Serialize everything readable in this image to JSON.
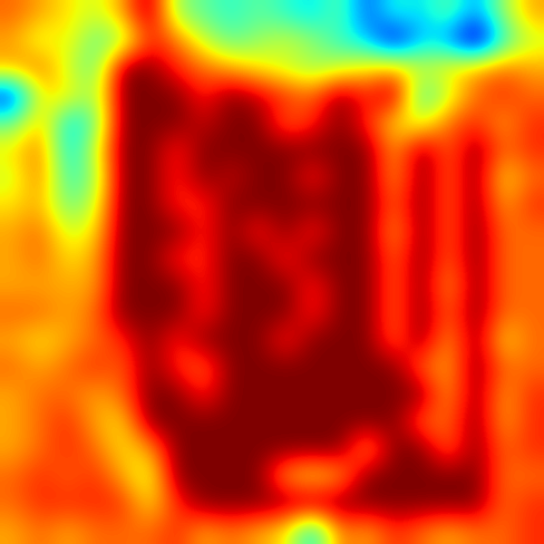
{
  "chart_data": {
    "type": "heatmap",
    "color": "jet",
    "tick_labels": false,
    "cells": [
      [
        0.85,
        0.8,
        0.75,
        0.7,
        0.8,
        1.0,
        0.65,
        0.6,
        0.55,
        0.6,
        0.55,
        0.5,
        0.6,
        0.4,
        0.55,
        0.5,
        0.6,
        0.45,
        0.65,
        0.8
      ],
      [
        0.8,
        0.7,
        0.75,
        0.6,
        0.65,
        0.9,
        0.85,
        0.7,
        0.6,
        0.65,
        0.7,
        0.65,
        0.55,
        0.5,
        0.3,
        0.5,
        0.45,
        0.25,
        0.55,
        0.7
      ],
      [
        0.8,
        0.85,
        0.7,
        0.6,
        1,
        1,
        0.9,
        0.85,
        0.8,
        0.75,
        0.7,
        0.65,
        0.7,
        0.75,
        0.8,
        0.7,
        0.75,
        0.8,
        0.85,
        0.8
      ],
      [
        0.35,
        0.75,
        0.75,
        0.65,
        1,
        1,
        1,
        0.9,
        1,
        0.95,
        0.9,
        0.85,
        1,
        0.9,
        1,
        0.55,
        0.7,
        0.85,
        0.9,
        0.85
      ],
      [
        0.6,
        0.8,
        0.5,
        0.6,
        1,
        1,
        1,
        0.95,
        1,
        1,
        0.85,
        0.9,
        1,
        0.9,
        0.75,
        0.7,
        0.85,
        0.9,
        0.8,
        0.9
      ],
      [
        0.75,
        0.85,
        0.5,
        0.7,
        1,
        1,
        0.9,
        1,
        1,
        1,
        1,
        1,
        1,
        1,
        0.8,
        1,
        0.85,
        1,
        0.85,
        0.9
      ],
      [
        0.7,
        0.85,
        0.55,
        0.65,
        1,
        1,
        0.9,
        1,
        0.95,
        1,
        1,
        0.9,
        1,
        1,
        0.8,
        1,
        0.85,
        1,
        0.75,
        0.85
      ],
      [
        0.75,
        0.8,
        0.6,
        0.7,
        1,
        1,
        0.9,
        0.9,
        1,
        1,
        1,
        1,
        1,
        1,
        0.85,
        1,
        0.85,
        1,
        0.8,
        0.9
      ],
      [
        0.8,
        0.85,
        0.7,
        0.75,
        1,
        1,
        1,
        0.9,
        1,
        0.9,
        1,
        0.9,
        1,
        1,
        0.8,
        1,
        0.85,
        1,
        0.85,
        0.85
      ],
      [
        0.8,
        0.85,
        0.75,
        0.8,
        1,
        1,
        0.9,
        0.9,
        1,
        1,
        0.9,
        1,
        1,
        1,
        0.85,
        1,
        0.85,
        1,
        0.85,
        0.85
      ],
      [
        0.8,
        0.8,
        0.8,
        0.8,
        1,
        1,
        1,
        0.9,
        1,
        1,
        1,
        0.9,
        1,
        1,
        0.85,
        1,
        0.8,
        1,
        0.85,
        0.85
      ],
      [
        0.85,
        0.85,
        0.8,
        0.85,
        1,
        1,
        1,
        0.9,
        1,
        1,
        1,
        0.9,
        1,
        1,
        0.85,
        1,
        0.85,
        1,
        0.85,
        0.85
      ],
      [
        0.8,
        0.75,
        0.8,
        0.85,
        0.9,
        1,
        0.9,
        1,
        1,
        1,
        0.9,
        1,
        1,
        1,
        0.85,
        1,
        0.8,
        1,
        0.75,
        0.85
      ],
      [
        0.85,
        0.8,
        0.85,
        0.9,
        0.85,
        1,
        0.9,
        0.85,
        1,
        1,
        1,
        1,
        1,
        1,
        1,
        0.85,
        0.8,
        1,
        0.85,
        0.85
      ],
      [
        0.8,
        0.85,
        0.85,
        0.8,
        0.85,
        1,
        1,
        0.9,
        1,
        1,
        1,
        1,
        1,
        1,
        1,
        1,
        0.8,
        1,
        0.8,
        0.9
      ],
      [
        0.8,
        0.85,
        0.9,
        0.8,
        0.75,
        1,
        1,
        1,
        1,
        1,
        1,
        1,
        1,
        1,
        1,
        0.85,
        0.85,
        1,
        0.8,
        0.9
      ],
      [
        0.8,
        0.85,
        0.9,
        0.85,
        0.75,
        0.8,
        1,
        1,
        1,
        1,
        1,
        1,
        1,
        0.8,
        1,
        1,
        0.85,
        1,
        0.85,
        0.9
      ],
      [
        0.85,
        0.9,
        0.85,
        0.9,
        0.8,
        0.7,
        1,
        1,
        1,
        1,
        0.8,
        0.75,
        0.8,
        1,
        1,
        1,
        1,
        1,
        0.85,
        0.85
      ],
      [
        0.85,
        0.9,
        0.9,
        0.9,
        0.9,
        0.75,
        0.9,
        1,
        1,
        1,
        1,
        1,
        1,
        1,
        1,
        1,
        1,
        1,
        0.85,
        0.9
      ],
      [
        0.8,
        0.85,
        0.8,
        0.85,
        0.85,
        0.85,
        0.9,
        0.8,
        0.85,
        0.8,
        0.75,
        0.5,
        0.85,
        0.8,
        0.9,
        0.85,
        0.8,
        0.85,
        0.85,
        0.9
      ]
    ]
  }
}
